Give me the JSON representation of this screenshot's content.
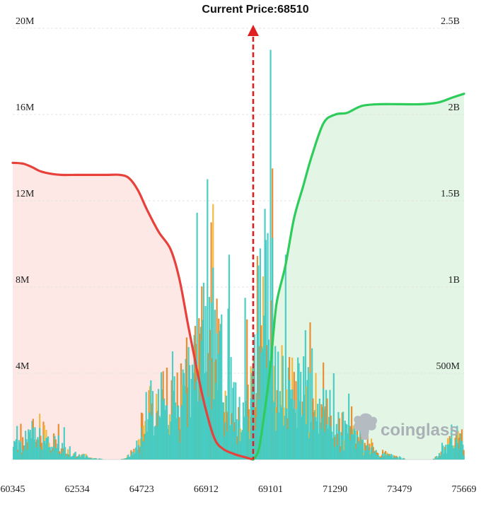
{
  "chart_data": {
    "type": "bar",
    "title": "Current Price:68510",
    "current_price": 68510,
    "x_ticks": [
      "60345",
      "62534",
      "64723",
      "66912",
      "69101",
      "71290",
      "73479",
      "75669"
    ],
    "x_range": [
      60345,
      75669
    ],
    "left_axis": {
      "ticks": [
        "4M",
        "8M",
        "12M",
        "16M",
        "20M"
      ],
      "range": [
        0,
        20000000
      ]
    },
    "right_axis": {
      "ticks": [
        "500M",
        "1B",
        "1.5B",
        "2B",
        "2.5B"
      ],
      "range": [
        0,
        2500000000
      ]
    },
    "grid": "horizontal-dashed",
    "watermark": "coinglass",
    "series": [
      {
        "kind": "cumulative-line",
        "axis": "right",
        "color": "#e8403a",
        "fill": "#fde8e6",
        "x": [
          60345,
          60700,
          61000,
          61300,
          61700,
          62000,
          62500,
          63000,
          63500,
          64000,
          64300,
          64600,
          64900,
          65300,
          65700,
          66000,
          66300,
          66600,
          66900,
          67200,
          67500,
          67900,
          68300,
          68510
        ],
        "y": [
          1720000000,
          1715000000,
          1695000000,
          1670000000,
          1655000000,
          1650000000,
          1650000000,
          1650000000,
          1650000000,
          1650000000,
          1630000000,
          1560000000,
          1450000000,
          1320000000,
          1220000000,
          1050000000,
          780000000,
          520000000,
          290000000,
          120000000,
          60000000,
          30000000,
          10000000,
          0
        ]
      },
      {
        "kind": "cumulative-line",
        "axis": "right",
        "color": "#2ecc5a",
        "fill": "#e3f6e6",
        "x": [
          68510,
          68700,
          68900,
          69100,
          69300,
          69600,
          69900,
          70200,
          70500,
          70900,
          71300,
          71700,
          72200,
          72800,
          73500,
          74200,
          74800,
          75300,
          75669
        ],
        "y": [
          0,
          60000000,
          280000000,
          550000000,
          900000000,
          1120000000,
          1400000000,
          1580000000,
          1760000000,
          1950000000,
          2000000000,
          2010000000,
          2050000000,
          2060000000,
          2060000000,
          2060000000,
          2070000000,
          2100000000,
          2120000000
        ]
      },
      {
        "kind": "volume-bars",
        "axis": "left",
        "colors": [
          "#45cbc2",
          "#e8892a",
          "#f0b73a"
        ],
        "profile_x": [
          60345,
          60700,
          61000,
          61400,
          61800,
          62200,
          62534,
          63000,
          63500,
          64000,
          64300,
          64500,
          64723,
          65000,
          65400,
          65800,
          66200,
          66500,
          66800,
          67000,
          67300,
          67600,
          67900,
          68200,
          68400,
          68650,
          68900,
          69101,
          69400,
          69800,
          70200,
          70600,
          71000,
          71290,
          71600,
          72000,
          72400,
          72800,
          73200,
          73479,
          73800,
          74200,
          74600,
          75000,
          75300,
          75669
        ],
        "profile_y": [
          600000,
          900000,
          1600000,
          1300000,
          900000,
          400000,
          300000,
          100000,
          0,
          0,
          200000,
          600000,
          2000000,
          3000000,
          3200000,
          3500000,
          4200000,
          5500000,
          7500000,
          6500000,
          5800000,
          4500000,
          3000000,
          2500000,
          2800000,
          7000000,
          9000000,
          6800000,
          4500000,
          3600000,
          3500000,
          3000000,
          2800000,
          2000000,
          1600000,
          1200000,
          800000,
          400000,
          200000,
          100000,
          0,
          0,
          0,
          500000,
          1400000,
          800000
        ],
        "peaks": [
          {
            "x": 62100,
            "y": 1500000
          },
          {
            "x": 66950,
            "y": 13000000
          },
          {
            "x": 67100,
            "y": 11000000
          },
          {
            "x": 67700,
            "y": 9500000
          },
          {
            "x": 67650,
            "y": 7000000
          },
          {
            "x": 68250,
            "y": 7500000
          },
          {
            "x": 68300,
            "y": 6500000
          },
          {
            "x": 68700,
            "y": 9000000
          },
          {
            "x": 69000,
            "y": 10500000
          },
          {
            "x": 69100,
            "y": 19000000
          },
          {
            "x": 69150,
            "y": 13500000
          },
          {
            "x": 69600,
            "y": 9500000
          },
          {
            "x": 70300,
            "y": 6000000
          },
          {
            "x": 70900,
            "y": 4500000
          },
          {
            "x": 71250,
            "y": 4000000
          },
          {
            "x": 72200,
            "y": 1500000
          },
          {
            "x": 75600,
            "y": 1400000
          }
        ]
      }
    ]
  }
}
